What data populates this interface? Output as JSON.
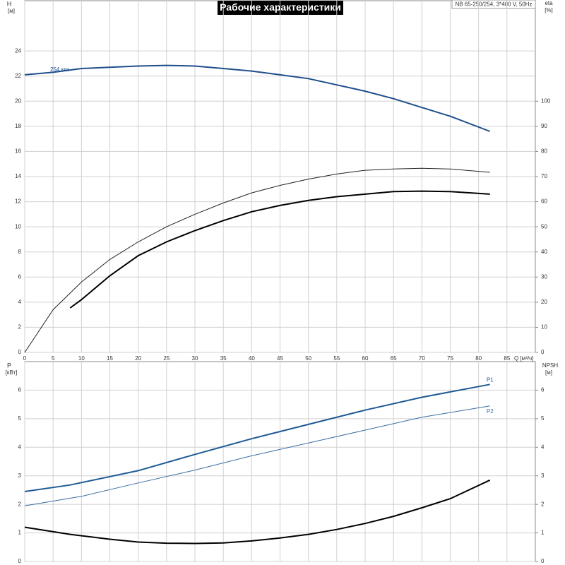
{
  "chart_data": [
    {
      "type": "line",
      "title": "Рабочие характеристики",
      "subtitle": "NB 65-250/254, 3*400 V, 50Hz",
      "y_label": "H",
      "y_unit": "[м]",
      "y2_label": "eta",
      "y2_unit": "[%]",
      "x_label": "Q [м³/ч]",
      "xlim": [
        0,
        90
      ],
      "xticks": [
        0,
        5,
        10,
        15,
        20,
        25,
        30,
        35,
        40,
        45,
        50,
        55,
        60,
        65,
        70,
        75,
        80,
        85
      ],
      "ylim": [
        0,
        28
      ],
      "yticks": [
        0,
        2,
        4,
        6,
        8,
        10,
        12,
        14,
        16,
        18,
        20,
        22,
        24
      ],
      "y2lim": [
        0,
        140
      ],
      "y2ticks": [
        0,
        10,
        20,
        30,
        40,
        50,
        60,
        70,
        80,
        90,
        100
      ],
      "grid": true,
      "series": [
        {
          "name": "254 мм",
          "color": "#1f4e8c",
          "line_width": 2,
          "x": [
            0,
            5,
            10,
            15,
            20,
            25,
            30,
            35,
            40,
            45,
            50,
            55,
            60,
            65,
            70,
            75,
            82
          ],
          "values": [
            22.1,
            22.3,
            22.6,
            22.7,
            22.8,
            22.85,
            22.8,
            22.6,
            22.4,
            22.1,
            21.8,
            21.3,
            20.8,
            20.2,
            19.5,
            18.8,
            17.6
          ]
        },
        {
          "color": "#222222",
          "line_width": 1,
          "axis": "y2",
          "x": [
            0,
            5,
            10,
            15,
            20,
            25,
            30,
            35,
            40,
            45,
            50,
            55,
            60,
            65,
            70,
            75,
            82
          ],
          "values": [
            0,
            17,
            28,
            37,
            44,
            50,
            55,
            59.5,
            63.5,
            66.5,
            69,
            71,
            72.5,
            73,
            73.3,
            73,
            71.7
          ]
        },
        {
          "color": "#000000",
          "line_width": 2,
          "axis": "y2",
          "x": [
            8,
            10,
            15,
            20,
            25,
            30,
            35,
            40,
            45,
            50,
            55,
            60,
            65,
            70,
            75,
            82
          ],
          "values": [
            17.7,
            21,
            30.5,
            38.5,
            44,
            48.5,
            52.5,
            56,
            58.5,
            60.5,
            62,
            63,
            64,
            64.2,
            64,
            63
          ]
        }
      ]
    },
    {
      "type": "line",
      "y_label": "P",
      "y_unit": "[кВт]",
      "y2_label": "NPSH",
      "y2_unit": "[м]",
      "ylim": [
        0,
        7
      ],
      "yticks": [
        0,
        1,
        2,
        3,
        4,
        5,
        6
      ],
      "y2lim": [
        0,
        7
      ],
      "y2ticks": [
        0,
        1,
        2,
        3,
        4,
        5,
        6
      ],
      "grid": true,
      "series": [
        {
          "name": "P1",
          "color": "#1f5a96",
          "line_width": 2,
          "x": [
            0,
            8,
            20,
            30,
            40,
            50,
            60,
            70,
            82
          ],
          "values": [
            2.45,
            2.68,
            3.18,
            3.75,
            4.3,
            4.8,
            5.3,
            5.75,
            6.2
          ]
        },
        {
          "name": "P2",
          "color": "#3a6ea5",
          "line_width": 1,
          "x": [
            0,
            10,
            20,
            30,
            40,
            50,
            60,
            70,
            82
          ],
          "values": [
            1.95,
            2.28,
            2.75,
            3.2,
            3.7,
            4.15,
            4.6,
            5.05,
            5.45
          ]
        },
        {
          "color": "#000000",
          "line_width": 2,
          "axis": "y2",
          "x": [
            0,
            8,
            15,
            20,
            25,
            30,
            35,
            40,
            45,
            50,
            55,
            60,
            65,
            70,
            75,
            82
          ],
          "values": [
            1.2,
            0.95,
            0.78,
            0.68,
            0.64,
            0.63,
            0.65,
            0.72,
            0.82,
            0.95,
            1.12,
            1.33,
            1.58,
            1.88,
            2.2,
            2.85
          ]
        }
      ]
    }
  ]
}
